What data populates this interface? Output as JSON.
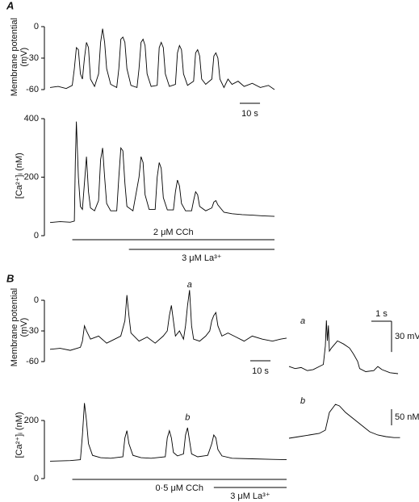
{
  "chart_data": [
    {
      "type": "line",
      "panel": "A",
      "ylabel": [
        "Membrane potential",
        "(mV)"
      ],
      "color": "#000",
      "xlim": [
        0,
        111
      ],
      "ylim": [
        -68,
        10
      ],
      "yticks": [
        0,
        -30,
        -60
      ],
      "x": [
        0,
        4,
        8,
        11,
        12,
        13,
        14,
        15,
        16,
        17,
        18,
        19,
        20,
        22,
        24,
        25,
        26,
        27,
        28,
        30,
        33,
        34,
        35,
        36,
        37,
        38,
        40,
        43,
        44,
        45,
        46,
        47,
        48,
        50,
        53,
        54,
        55,
        56,
        57,
        59,
        62,
        63,
        64,
        65,
        66,
        68,
        71,
        72,
        73,
        74,
        75,
        77,
        80,
        81,
        82,
        83,
        84,
        86,
        88,
        90,
        93,
        96,
        100,
        104,
        108,
        111
      ],
      "values": [
        -58,
        -57,
        -59,
        -56,
        -40,
        -20,
        -22,
        -45,
        -50,
        -30,
        -15,
        -20,
        -50,
        -57,
        -45,
        -15,
        -2,
        -15,
        -40,
        -55,
        -58,
        -40,
        -12,
        -10,
        -15,
        -40,
        -56,
        -58,
        -40,
        -15,
        -12,
        -18,
        -45,
        -57,
        -56,
        -20,
        -15,
        -20,
        -45,
        -57,
        -55,
        -25,
        -18,
        -22,
        -45,
        -56,
        -52,
        -25,
        -22,
        -28,
        -50,
        -55,
        -50,
        -28,
        -25,
        -30,
        -50,
        -58,
        -50,
        -55,
        -52,
        -57,
        -54,
        -58,
        -56,
        -60
      ],
      "scalebars": [
        {
          "axis": "x",
          "value": 10,
          "label": "10 s"
        }
      ]
    },
    {
      "type": "line",
      "ylabel": [
        "[Ca²⁺]ᵢ (nM)"
      ],
      "color": "#000",
      "xlim": [
        0,
        111
      ],
      "ylim": [
        0,
        410
      ],
      "yticks": [
        400,
        200,
        0
      ],
      "x": [
        0,
        5,
        10,
        12,
        12.5,
        13,
        14,
        15,
        16,
        17,
        18,
        19,
        20,
        22,
        24,
        25,
        26,
        27,
        28,
        30,
        33,
        34,
        35,
        36,
        37,
        38,
        41,
        44,
        45,
        46,
        47,
        49,
        52,
        53,
        54,
        55,
        56,
        58,
        61,
        62,
        63,
        64,
        65,
        67,
        70,
        71,
        72,
        73,
        74,
        77,
        80,
        81,
        82,
        83,
        86,
        90,
        95,
        100,
        105,
        111
      ],
      "values": [
        45,
        48,
        46,
        50,
        250,
        390,
        200,
        100,
        90,
        180,
        270,
        150,
        95,
        85,
        120,
        260,
        300,
        200,
        110,
        85,
        85,
        200,
        300,
        290,
        180,
        100,
        85,
        200,
        270,
        250,
        140,
        90,
        90,
        200,
        250,
        230,
        130,
        88,
        88,
        150,
        190,
        170,
        110,
        85,
        85,
        120,
        150,
        140,
        100,
        85,
        95,
        115,
        120,
        105,
        80,
        75,
        72,
        70,
        68,
        66
      ],
      "treatments": [
        {
          "label": "2 μM CCh",
          "start": 11,
          "end": 111
        },
        {
          "label": "3 μM La³⁺",
          "start": 39,
          "end": 111
        }
      ]
    },
    {
      "type": "line",
      "panel": "B",
      "ylabel": [
        "Membrane potential",
        "(mV)"
      ],
      "color": "#000",
      "xlim": [
        0,
        117
      ],
      "ylim": [
        -70,
        17
      ],
      "yticks": [
        0,
        -30,
        -60
      ],
      "x": [
        0,
        5,
        10,
        15,
        16,
        17,
        18,
        20,
        24,
        28,
        32,
        35,
        37,
        38,
        39,
        40,
        44,
        48,
        52,
        56,
        58,
        59,
        60,
        61,
        62,
        64,
        66,
        67,
        68,
        69,
        70,
        71,
        74,
        77,
        79,
        80,
        81,
        82,
        83,
        85,
        88,
        92,
        96,
        100,
        105,
        110,
        114,
        117
      ],
      "values": [
        -48,
        -47,
        -49,
        -46,
        -40,
        -25,
        -30,
        -38,
        -35,
        -42,
        -38,
        -35,
        -20,
        5,
        -15,
        -32,
        -40,
        -36,
        -42,
        -35,
        -30,
        -15,
        -5,
        -20,
        -35,
        -30,
        -38,
        -25,
        -5,
        10,
        -25,
        -38,
        -40,
        -35,
        -30,
        -20,
        -15,
        -12,
        -25,
        -35,
        -32,
        -36,
        -40,
        -35,
        -38,
        -40,
        -38,
        -37
      ],
      "scalebars": [
        {
          "axis": "x",
          "value": 10,
          "label": "10 s"
        }
      ],
      "annotations": [
        {
          "text": "a",
          "x": 69,
          "y": 15
        }
      ]
    },
    {
      "type": "line",
      "ylabel": [
        "[Ca²⁺]ᵢ (nM)"
      ],
      "color": "#000",
      "xlim": [
        0,
        117
      ],
      "ylim": [
        0,
        300
      ],
      "yticks": [
        200,
        0
      ],
      "x": [
        0,
        10,
        15,
        16,
        17,
        18,
        19,
        21,
        25,
        30,
        36,
        37,
        38,
        39,
        41,
        45,
        50,
        57,
        58,
        59,
        60,
        61,
        63,
        66,
        67,
        68,
        69,
        70,
        73,
        78,
        80,
        81,
        82,
        83,
        85,
        90,
        100,
        110,
        117
      ],
      "values": [
        60,
        62,
        65,
        150,
        260,
        200,
        120,
        80,
        72,
        70,
        75,
        140,
        165,
        120,
        80,
        72,
        70,
        75,
        140,
        165,
        140,
        90,
        78,
        85,
        150,
        175,
        130,
        85,
        75,
        80,
        120,
        150,
        140,
        100,
        78,
        70,
        68,
        66,
        65
      ],
      "treatments": [
        {
          "label": "0·5 μM CCh",
          "start": 11,
          "end": 117
        },
        {
          "label": "3 μM La³⁺",
          "start": 81,
          "end": 117
        }
      ],
      "annotations": [
        {
          "text": "b",
          "x": 68,
          "y": 210
        }
      ]
    },
    {
      "type": "line",
      "title": "a",
      "color": "#000",
      "x": [
        0,
        0.3,
        0.6,
        0.9,
        1.2,
        1.5,
        1.7,
        1.8,
        1.85,
        1.9,
        1.95,
        2.0,
        2.1,
        2.4,
        2.7,
        3.0,
        3.2,
        3.4,
        3.5,
        3.8,
        4.2,
        4.4,
        4.6,
        5.0,
        5.4
      ],
      "values": [
        -40,
        -42,
        -41,
        -44,
        -43,
        -40,
        -38,
        -20,
        5,
        -15,
        0,
        -25,
        -22,
        -15,
        -18,
        -22,
        -28,
        -35,
        -42,
        -45,
        -44,
        -40,
        -43,
        -46,
        -47
      ],
      "scalebars": [
        {
          "axis": "x",
          "value": 1,
          "label": "1 s"
        },
        {
          "axis": "y",
          "value": 30,
          "label": "30 mV"
        }
      ]
    },
    {
      "type": "line",
      "title": "b",
      "color": "#000",
      "x": [
        0,
        0.5,
        1.0,
        1.5,
        1.8,
        2.0,
        2.3,
        2.5,
        2.8,
        3.2,
        3.6,
        4.0,
        4.4,
        4.8,
        5.2,
        5.5
      ],
      "values": [
        60,
        65,
        70,
        75,
        85,
        140,
        165,
        160,
        140,
        120,
        100,
        80,
        70,
        65,
        62,
        62
      ],
      "scalebars": [
        {
          "axis": "y",
          "value": 50,
          "label": "50 nM"
        }
      ]
    }
  ]
}
